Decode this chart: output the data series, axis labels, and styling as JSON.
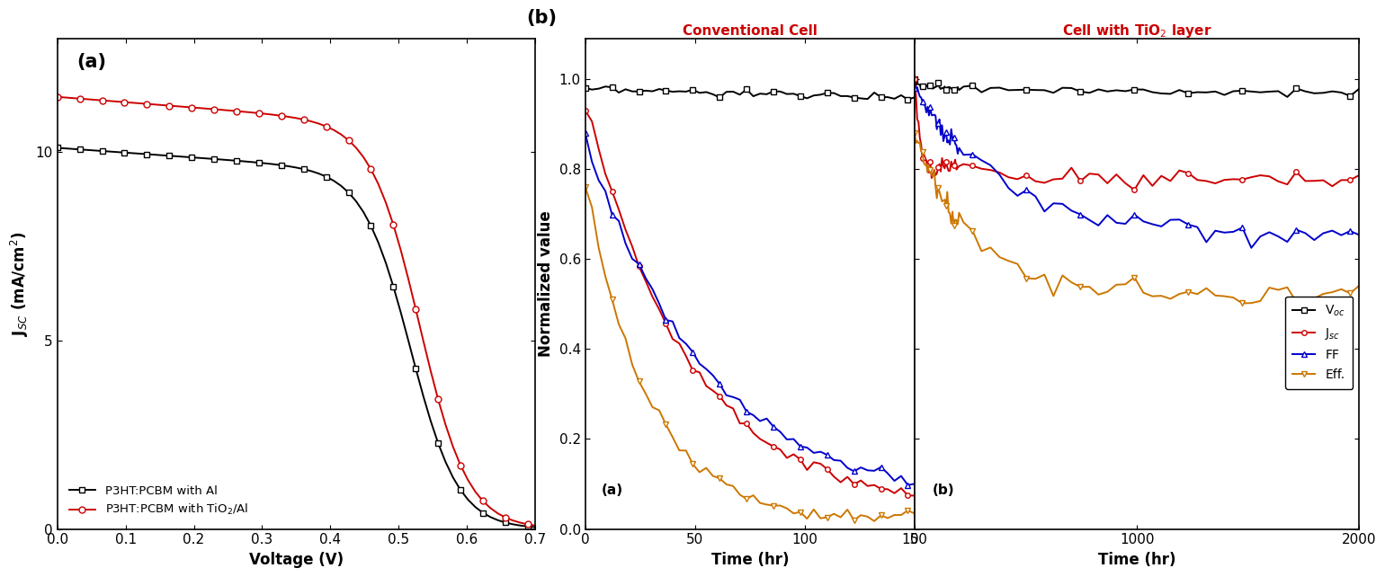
{
  "fig_width": 15.4,
  "fig_height": 6.46,
  "dpi": 100,
  "panel_a_label": "(a)",
  "panel_b_label": "(b)",
  "jv_xlabel": "Voltage (V)",
  "jv_ylabel": "J$_{SC}$ (mA/cm$^2$)",
  "jv_xlim": [
    0.0,
    0.7
  ],
  "jv_ylim": [
    0.0,
    13.0
  ],
  "jv_xticks": [
    0.0,
    0.1,
    0.2,
    0.3,
    0.4,
    0.5,
    0.6,
    0.7
  ],
  "jv_yticks": [
    0,
    5,
    10
  ],
  "legend1_label": "P3HT:PCBM with Al",
  "legend2_label": "P3HT:PCBM with TiO$_2$/Al",
  "stab_xlabel": "Time (hr)",
  "stab_ylabel": "Normalized value",
  "stab_ylim": [
    0.0,
    1.09
  ],
  "stab_yticks": [
    0.0,
    0.2,
    0.4,
    0.6,
    0.8,
    1.0
  ],
  "conv_xlim": [
    0,
    150
  ],
  "conv_xticks": [
    0,
    50,
    100,
    150
  ],
  "tio2_xlim": [
    0,
    2000
  ],
  "tio2_xticks": [
    0,
    1000,
    2000
  ],
  "title_conv": "Conventional Cell",
  "title_tio2": "Cell with TiO$_2$ layer",
  "title_color": "#cc0000",
  "legend_voc": "V$_{oc}$",
  "legend_jsc": "J$_{sc}$",
  "legend_ff": "FF",
  "legend_eff": "Eff.",
  "color_black": "#000000",
  "color_red": "#cc0000",
  "color_blue": "#0000cc",
  "color_orange": "#cc7700",
  "background_color": "#ffffff"
}
